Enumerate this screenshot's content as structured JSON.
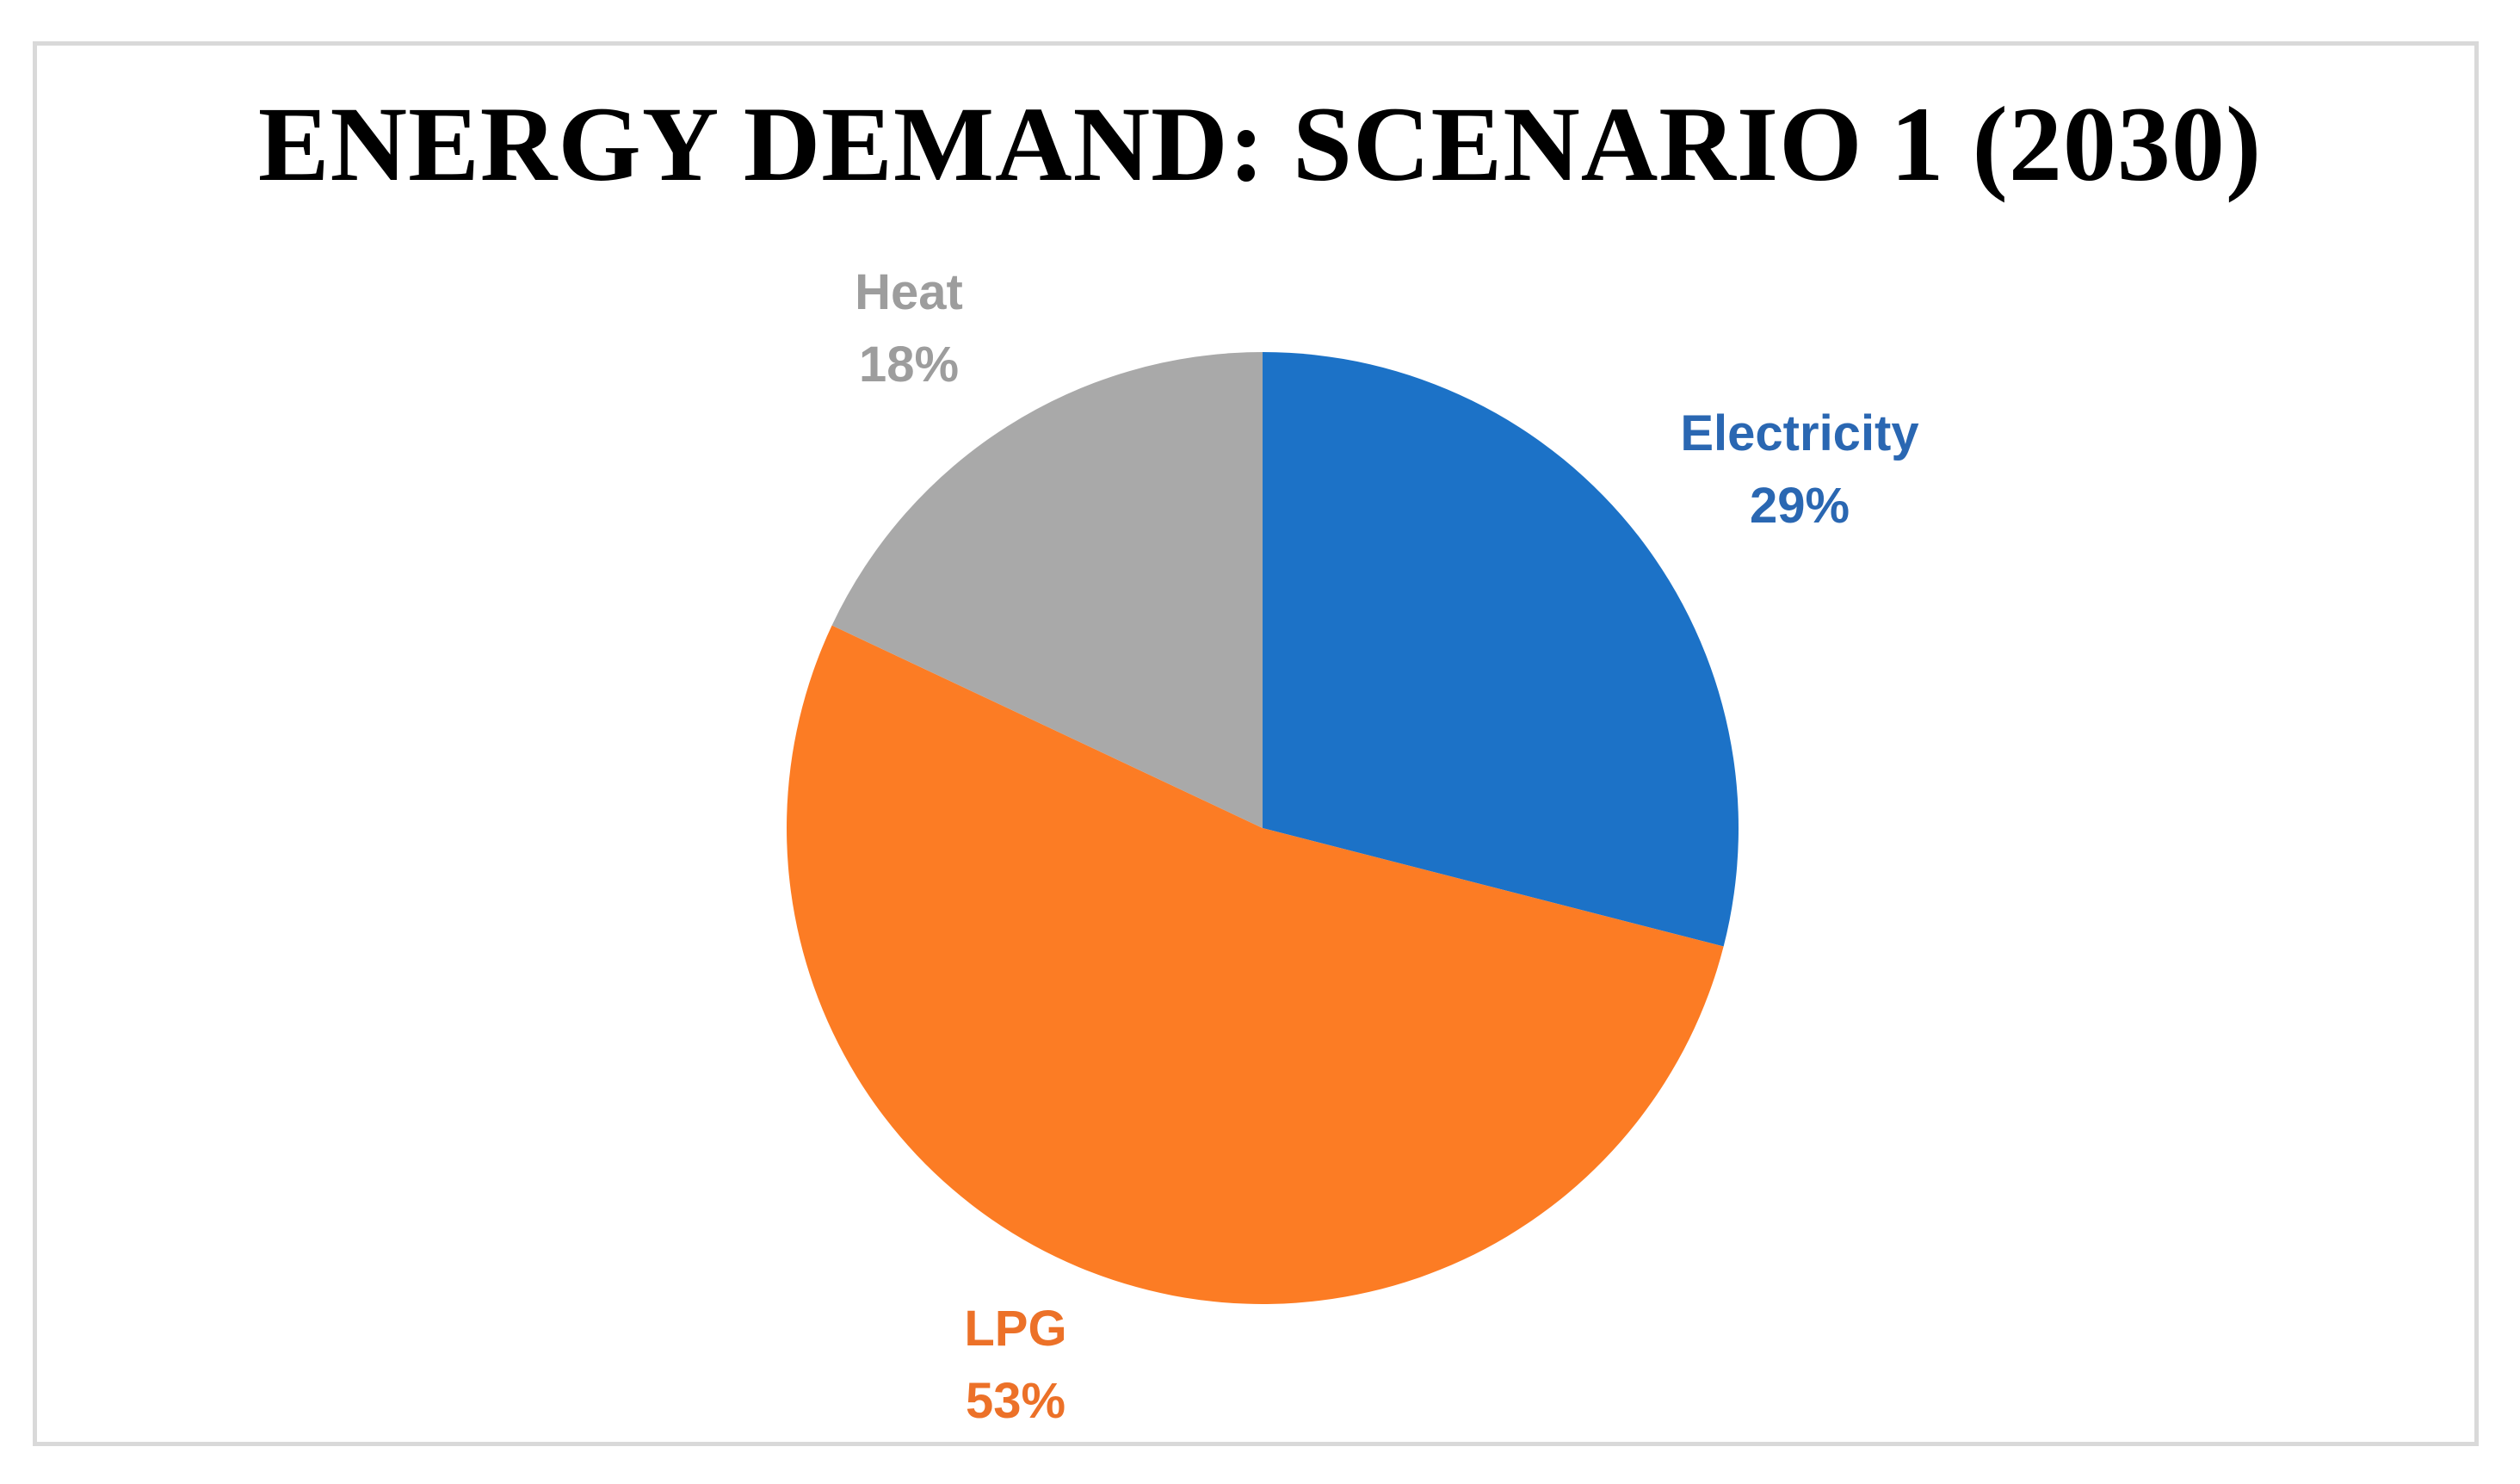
{
  "chart_data": {
    "type": "pie",
    "title": "ENERGY DEMAND: SCENARIO 1 (2030)",
    "categories": [
      "Electricity",
      "LPG",
      "Heat"
    ],
    "values": [
      29,
      53,
      18
    ],
    "unit": "percent",
    "start_angle_deg": 0,
    "direction": "clockwise",
    "legend": "none",
    "label_style": "outside, category name + percentage, colored to match slice",
    "slices": [
      {
        "label": "Electricity",
        "pct": "29%",
        "value": 29,
        "color": "#1c72c7",
        "label_color": "#2a67b2"
      },
      {
        "label": "LPG",
        "pct": "53%",
        "value": 53,
        "color": "#fc7c24",
        "label_color": "#ec7128"
      },
      {
        "label": "Heat",
        "pct": "18%",
        "value": 18,
        "color": "#a9a9a9",
        "label_color": "#9d9d9d"
      }
    ]
  },
  "colors": {
    "title_text": "#000000",
    "frame_border": "#d9d9d9",
    "background": "#ffffff"
  }
}
